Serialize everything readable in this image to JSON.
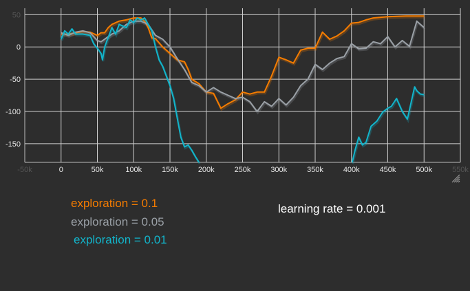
{
  "chart_data": {
    "type": "line",
    "title": "",
    "xlabel": "",
    "ylabel": "",
    "xlim": [
      -50000,
      550000
    ],
    "ylim": [
      -179,
      60
    ],
    "grid": true,
    "x_ticks": [
      -50000,
      0,
      50000,
      100000,
      150000,
      200000,
      250000,
      300000,
      350000,
      400000,
      450000,
      500000,
      550000
    ],
    "x_tick_labels": [
      "-50k",
      "0",
      "50k",
      "100k",
      "150k",
      "200k",
      "250k",
      "300k",
      "350k",
      "400k",
      "450k",
      "500k",
      "550k"
    ],
    "y_ticks": [
      50,
      0,
      -50,
      -100,
      -150
    ],
    "y_tick_labels": [
      "50",
      "0",
      "-50",
      "-100",
      "-150"
    ],
    "series": [
      {
        "name": "exploration = 0.1",
        "color": "#f57c00",
        "x": [
          0,
          10000,
          20000,
          30000,
          40000,
          50000,
          55000,
          60000,
          65000,
          70000,
          80000,
          90000,
          100000,
          110000,
          115000,
          120000,
          125000,
          130000,
          140000,
          150000,
          160000,
          170000,
          175000,
          180000,
          190000,
          200000,
          210000,
          220000,
          230000,
          240000,
          250000,
          260000,
          270000,
          280000,
          290000,
          300000,
          310000,
          320000,
          330000,
          340000,
          350000,
          360000,
          370000,
          380000,
          390000,
          400000,
          410000,
          420000,
          430000,
          450000,
          475000,
          500000
        ],
        "y": [
          20,
          20,
          22,
          24,
          23,
          18,
          22,
          22,
          30,
          35,
          40,
          42,
          45,
          45,
          40,
          30,
          14,
          13,
          0,
          -10,
          -20,
          -23,
          -35,
          -50,
          -57,
          -70,
          -72,
          -95,
          -88,
          -82,
          -70,
          -73,
          -70,
          -70,
          -45,
          -16,
          -20,
          -25,
          -5,
          -2,
          -2,
          23,
          12,
          17,
          25,
          37,
          38,
          42,
          45,
          47,
          48,
          48
        ]
      },
      {
        "name": "exploration = 0.05",
        "color": "#9aa0a6",
        "x": [
          0,
          10000,
          20000,
          30000,
          40000,
          50000,
          55000,
          60000,
          70000,
          80000,
          90000,
          100000,
          110000,
          120000,
          130000,
          140000,
          150000,
          160000,
          170000,
          180000,
          190000,
          200000,
          210000,
          220000,
          230000,
          240000,
          250000,
          260000,
          270000,
          280000,
          290000,
          300000,
          310000,
          320000,
          330000,
          340000,
          350000,
          360000,
          370000,
          380000,
          390000,
          400000,
          410000,
          420000,
          430000,
          440000,
          450000,
          460000,
          470000,
          480000,
          490000,
          500000
        ],
        "y": [
          22,
          18,
          23,
          25,
          22,
          10,
          8,
          12,
          20,
          25,
          35,
          40,
          40,
          35,
          18,
          12,
          0,
          -18,
          -35,
          -55,
          -60,
          -70,
          -63,
          -70,
          -75,
          -80,
          -78,
          -85,
          -100,
          -85,
          -92,
          -80,
          -90,
          -78,
          -60,
          -50,
          -27,
          -35,
          -25,
          -18,
          -15,
          5,
          -3,
          -2,
          8,
          5,
          16,
          0,
          10,
          1,
          40,
          30
        ]
      },
      {
        "name": "exploration = 0.01",
        "color": "#12b5cb",
        "x": [
          0,
          5000,
          10000,
          15000,
          20000,
          30000,
          40000,
          45000,
          50000,
          55000,
          57000,
          60000,
          65000,
          70000,
          75000,
          80000,
          90000,
          95000,
          100000,
          105000,
          110000,
          115000,
          120000,
          125000,
          130000,
          135000,
          140000,
          145000,
          150000,
          155000,
          160000,
          165000,
          170000,
          175000,
          180000,
          185000,
          190000,
          300000,
          401000,
          405000,
          410000,
          415000,
          420000,
          427000,
          435000,
          443000,
          450000,
          455000,
          462000,
          470000,
          477000,
          487000,
          490000,
          495000,
          500000
        ],
        "y": [
          12,
          25,
          20,
          28,
          20,
          20,
          18,
          5,
          -2,
          -10,
          -20,
          0,
          15,
          30,
          20,
          35,
          30,
          42,
          38,
          45,
          42,
          45,
          35,
          25,
          0,
          -20,
          -30,
          -45,
          -60,
          -80,
          -110,
          -140,
          -155,
          -152,
          -160,
          -170,
          -180,
          null,
          -180,
          -160,
          -140,
          -152,
          -148,
          -123,
          -115,
          -101,
          -95,
          -92,
          -80,
          -100,
          -112,
          -62,
          -68,
          -73,
          -74
        ]
      }
    ]
  },
  "legend": {
    "entries": [
      "exploration = 0.1",
      "exploration = 0.05",
      "exploration = 0.01"
    ],
    "note": "learning rate = 0.001"
  }
}
